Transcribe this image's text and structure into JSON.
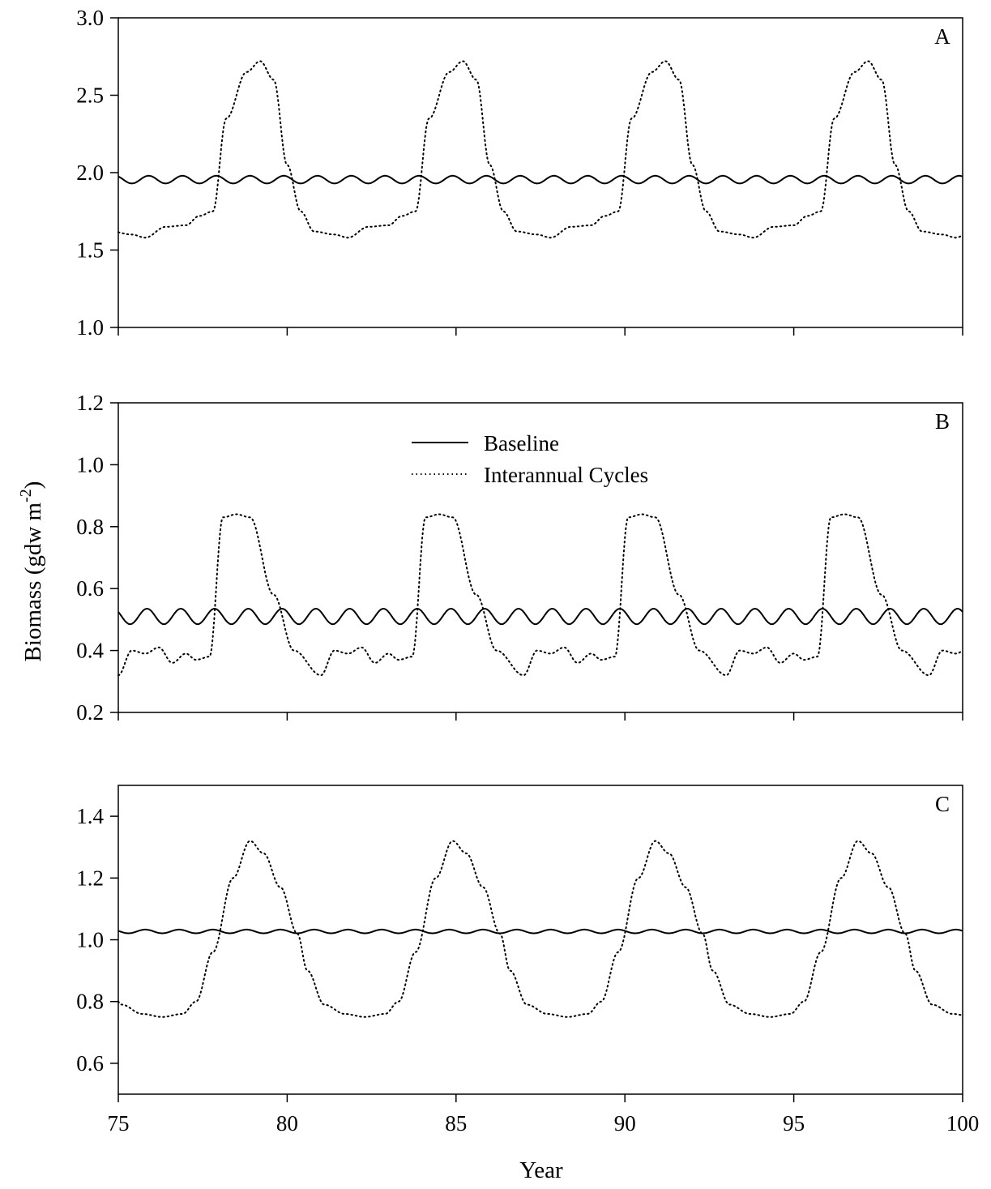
{
  "figure": {
    "xlabel": "Year",
    "ylabel": "Biomass (gdw m",
    "ylabel_sup": "-2",
    "ylabel_close": ")",
    "x_ticks": [
      "75",
      "80",
      "85",
      "90",
      "95",
      "100"
    ]
  },
  "legend": {
    "location": "top-center of panel B",
    "entries": [
      {
        "label": "Baseline",
        "style": "solid"
      },
      {
        "label": "Interannual Cycles",
        "style": "dotted"
      }
    ]
  },
  "chart_data": [
    {
      "type": "line",
      "panel": "A",
      "xlim": [
        75,
        100
      ],
      "ylim": [
        1.0,
        3.0
      ],
      "x_ticks": [
        75,
        80,
        85,
        90,
        95,
        100
      ],
      "y_ticks": [
        1.0,
        1.5,
        2.0,
        2.5,
        3.0
      ],
      "y_tick_labels": [
        "1.0",
        "1.5",
        "2.0",
        "2.5",
        "3.0"
      ],
      "grid": false,
      "series": [
        {
          "name": "Baseline",
          "style": "solid",
          "annual_cycle": {
            "mean": 1.955,
            "amplitude": 0.025,
            "period_years": 1,
            "peak_year_fraction": 0.9
          }
        },
        {
          "name": "Interannual Cycles",
          "style": "dotted",
          "cycle_period_years": 6,
          "cycle_points": [
            [
              0,
              1.75
            ],
            [
              0.4,
              1.62
            ],
            [
              1.0,
              1.6
            ],
            [
              1.4,
              1.58
            ],
            [
              2.0,
              1.65
            ],
            [
              2.6,
              1.66
            ],
            [
              3.0,
              1.72
            ],
            [
              3.4,
              1.75
            ],
            [
              3.8,
              2.35
            ],
            [
              4.4,
              2.65
            ],
            [
              4.8,
              2.72
            ],
            [
              5.2,
              2.6
            ],
            [
              5.6,
              2.05
            ],
            [
              6.0,
              1.75
            ]
          ],
          "first_cycle_start_year": 74.4
        }
      ]
    },
    {
      "type": "line",
      "panel": "B",
      "xlim": [
        75,
        100
      ],
      "ylim": [
        0.2,
        1.2
      ],
      "x_ticks": [
        75,
        80,
        85,
        90,
        95,
        100
      ],
      "y_ticks": [
        0.2,
        0.4,
        0.6,
        0.8,
        1.0,
        1.2
      ],
      "y_tick_labels": [
        "0.2",
        "0.4",
        "0.6",
        "0.8",
        "1.0",
        "1.2"
      ],
      "grid": false,
      "series": [
        {
          "name": "Baseline",
          "style": "solid",
          "annual_cycle": {
            "mean": 0.51,
            "amplitude": 0.025,
            "period_years": 1,
            "peak_year_fraction": 0.85
          }
        },
        {
          "name": "Interannual Cycles",
          "style": "dotted",
          "cycle_period_years": 6,
          "cycle_points": [
            [
              0,
              0.32
            ],
            [
              0.4,
              0.4
            ],
            [
              0.8,
              0.39
            ],
            [
              1.2,
              0.41
            ],
            [
              1.6,
              0.36
            ],
            [
              2.0,
              0.39
            ],
            [
              2.3,
              0.37
            ],
            [
              2.7,
              0.38
            ],
            [
              3.1,
              0.83
            ],
            [
              3.5,
              0.84
            ],
            [
              3.9,
              0.83
            ],
            [
              4.6,
              0.58
            ],
            [
              5.2,
              0.4
            ],
            [
              6.0,
              0.32
            ]
          ],
          "first_cycle_start_year": 75.0
        }
      ]
    },
    {
      "type": "line",
      "panel": "C",
      "xlim": [
        75,
        100
      ],
      "ylim": [
        0.5,
        1.5
      ],
      "x_ticks": [
        75,
        80,
        85,
        90,
        95,
        100
      ],
      "y_ticks": [
        0.6,
        0.8,
        1.0,
        1.2,
        1.4
      ],
      "y_tick_labels": [
        "0.6",
        "0.8",
        "1.0",
        "1.2",
        "1.4"
      ],
      "grid": false,
      "series": [
        {
          "name": "Baseline",
          "style": "solid",
          "annual_cycle": {
            "mean": 1.027,
            "amplitude": 0.006,
            "period_years": 1,
            "peak_year_fraction": 0.8
          }
        },
        {
          "name": "Interannual Cycles",
          "style": "dotted",
          "cycle_period_years": 6,
          "cycle_points": [
            [
              0,
              1.02
            ],
            [
              0.3,
              0.9
            ],
            [
              0.8,
              0.79
            ],
            [
              1.4,
              0.76
            ],
            [
              2.0,
              0.75
            ],
            [
              2.6,
              0.76
            ],
            [
              3.0,
              0.8
            ],
            [
              3.5,
              0.96
            ],
            [
              4.1,
              1.2
            ],
            [
              4.6,
              1.32
            ],
            [
              5.0,
              1.28
            ],
            [
              5.5,
              1.17
            ],
            [
              6.0,
              1.02
            ]
          ],
          "first_cycle_start_year": 74.3
        }
      ]
    }
  ]
}
